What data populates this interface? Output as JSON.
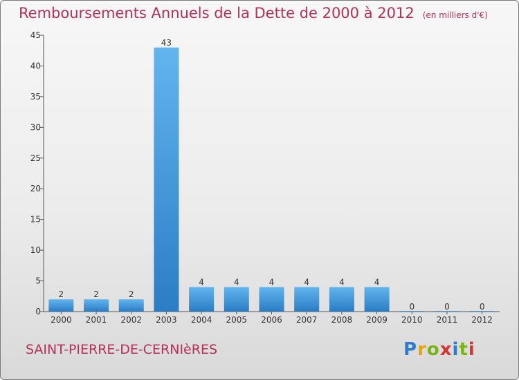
{
  "title": "Remboursements Annuels de la Dette de 2000 à 2012",
  "unit": "(en milliers d'€)",
  "commune": "SAINT-PIERRE-DE-CERNIèRES",
  "logo": {
    "text": "Proxiti",
    "colors": [
      "#2b7bcf",
      "#e8a400",
      "#7ab317",
      "#d93232",
      "#2b7bcf",
      "#7ab317",
      "#d93232"
    ]
  },
  "colors": {
    "title": "#b5305a",
    "bar_light": "#62b5ee",
    "bar_dark": "#2a7dc4",
    "axis": "#555555",
    "tick_text": "#333333"
  },
  "chart_data": {
    "type": "bar",
    "categories": [
      "2000",
      "2001",
      "2002",
      "2003",
      "2004",
      "2005",
      "2006",
      "2007",
      "2008",
      "2009",
      "2010",
      "2011",
      "2012"
    ],
    "values": [
      2,
      2,
      2,
      43,
      4,
      4,
      4,
      4,
      4,
      4,
      0,
      0,
      0
    ],
    "ylim": [
      0,
      45
    ],
    "yticks": [
      0,
      5,
      10,
      15,
      20,
      25,
      30,
      35,
      40,
      45
    ],
    "grid": false,
    "legend": "none",
    "xlabel": "",
    "ylabel": ""
  }
}
